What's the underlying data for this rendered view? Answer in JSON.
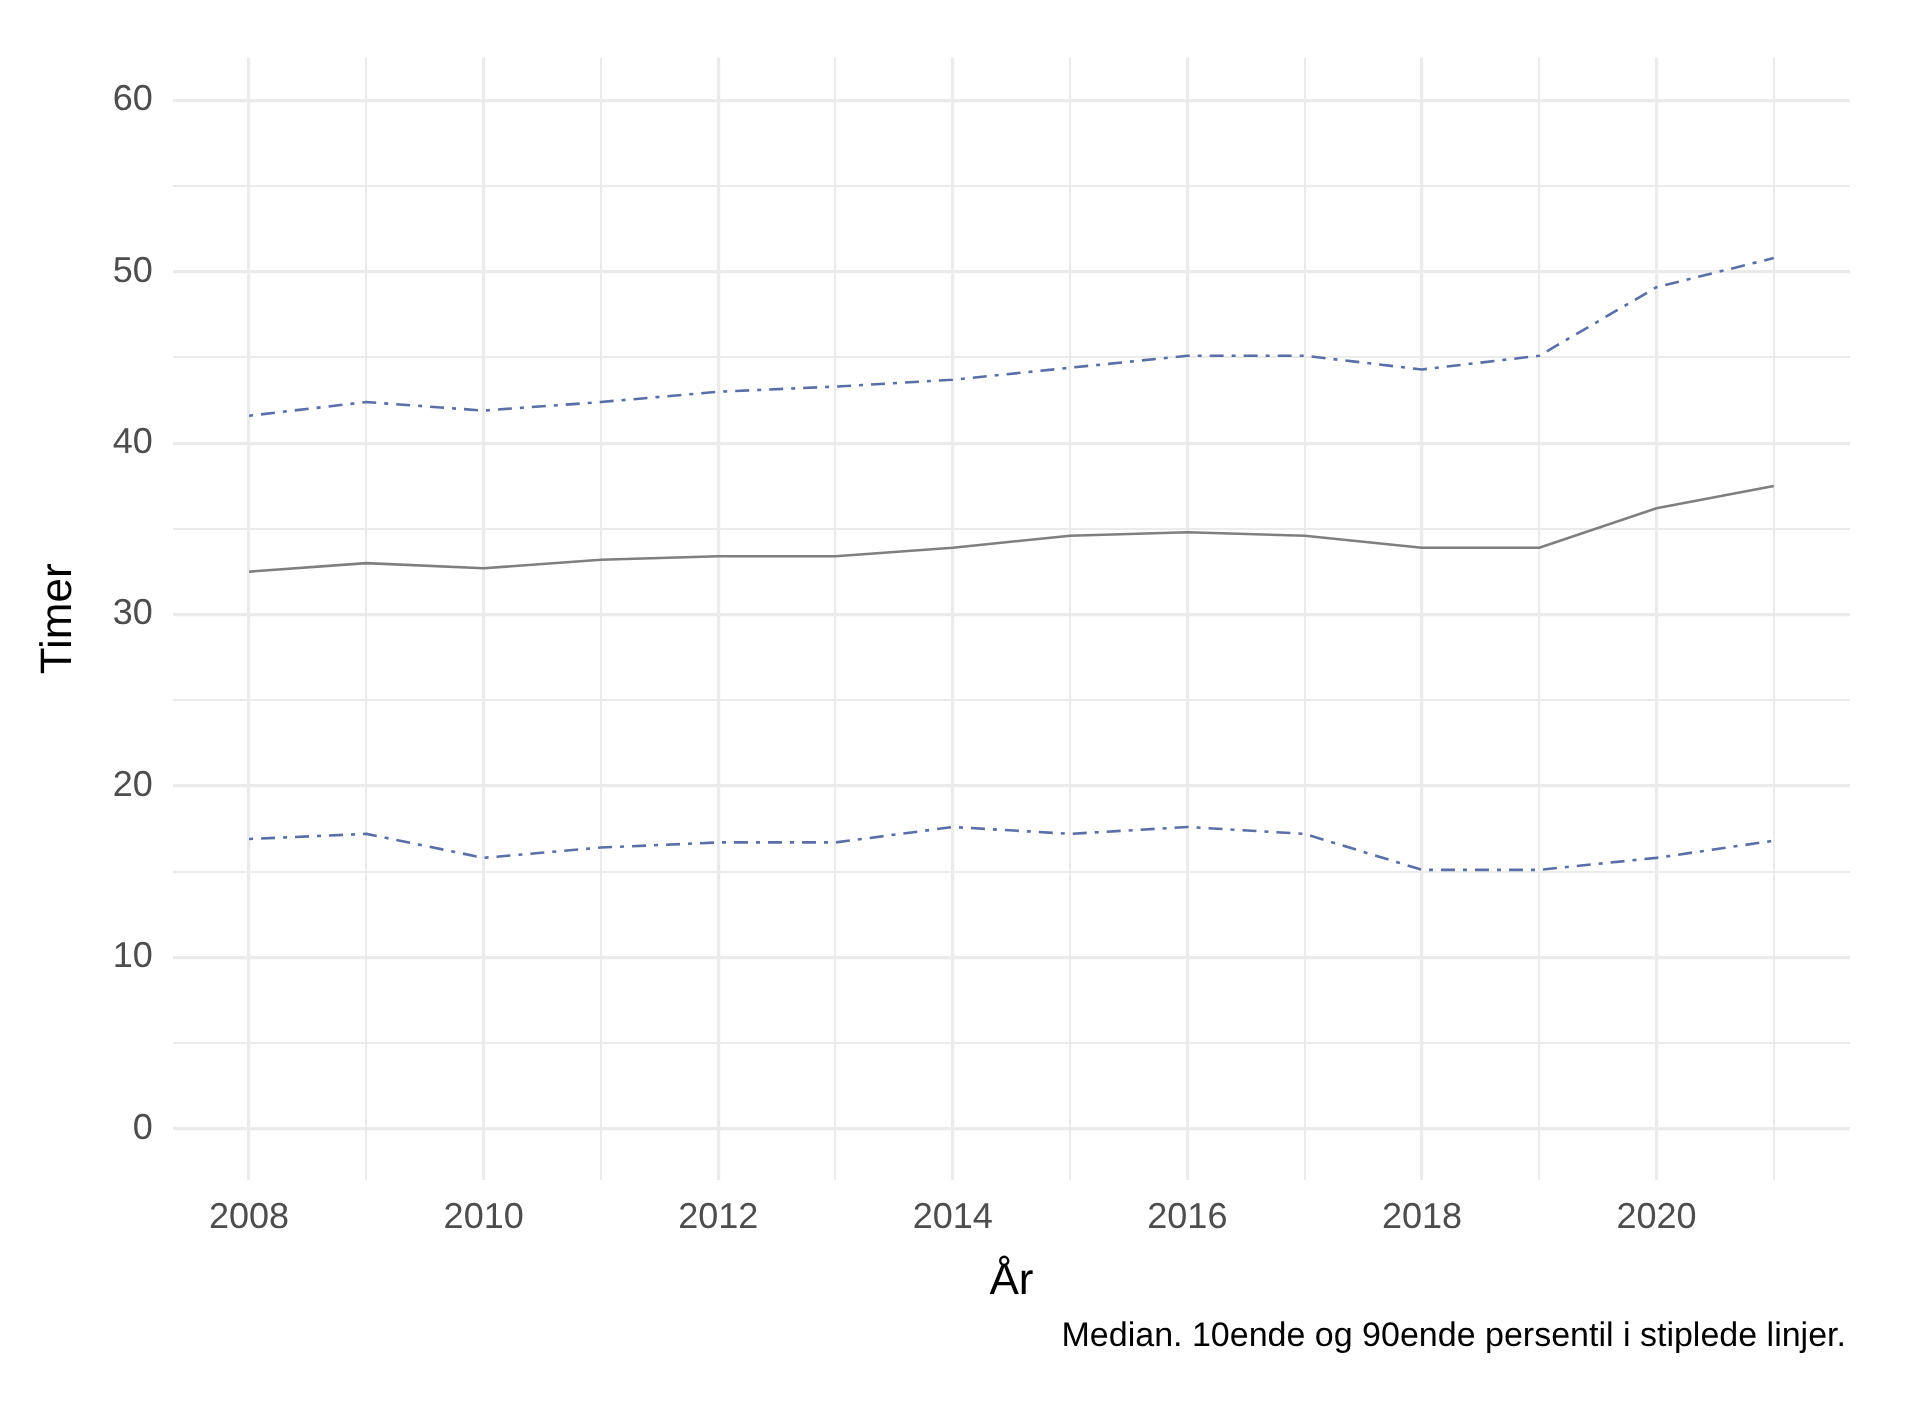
{
  "chart_data": {
    "type": "line",
    "xlabel": "År",
    "ylabel": "Timer",
    "x": [
      2008,
      2009,
      2010,
      2011,
      2012,
      2013,
      2014,
      2015,
      2016,
      2017,
      2018,
      2019,
      2020,
      2021
    ],
    "series": [
      {
        "color": "#5a6fa8",
        "line_style": "dashed",
        "values": [
          41.6,
          42.4,
          41.9,
          42.4,
          43.0,
          43.3,
          43.7,
          44.4,
          45.1,
          45.1,
          44.3,
          45.1,
          49.1,
          50.8
        ]
      },
      {
        "color": "#7f7f7f",
        "line_style": "solid",
        "values": [
          32.5,
          33.0,
          32.7,
          33.2,
          33.4,
          33.4,
          33.9,
          34.6,
          34.8,
          34.6,
          33.9,
          33.9,
          36.2,
          37.5
        ]
      },
      {
        "color": "#5a6fa8",
        "line_style": "dashed",
        "values": [
          16.9,
          17.2,
          15.8,
          16.4,
          16.7,
          16.7,
          17.6,
          17.2,
          17.6,
          17.2,
          15.1,
          15.1,
          15.8,
          16.8
        ]
      }
    ],
    "xlim": [
      2007.35,
      2021.65
    ],
    "ylim": [
      -3,
      62.5
    ],
    "xticks": [
      2008,
      {
        "value": 2009,
        "label": null
      },
      2010,
      {
        "value": 2011,
        "label": null
      },
      2012,
      {
        "value": 2013,
        "label": null
      },
      2014,
      {
        "value": 2015,
        "label": null
      },
      2016,
      {
        "value": 2017,
        "label": null
      },
      2018,
      {
        "value": 2019,
        "label": null
      },
      2020,
      {
        "value": 2021,
        "label": null
      }
    ],
    "yticks": [
      0,
      {
        "value": 5,
        "label": null
      },
      10,
      {
        "value": 15,
        "label": null
      },
      20,
      {
        "value": 25,
        "label": null
      },
      30,
      {
        "value": 35,
        "label": null
      },
      40,
      {
        "value": 45,
        "label": null
      },
      50,
      {
        "value": 55,
        "label": null
      },
      60
    ],
    "grid": true,
    "legend": false,
    "marker": "none",
    "annotations": [
      "Median. 10ende og 90ende persentil i stiplede linjer."
    ]
  }
}
